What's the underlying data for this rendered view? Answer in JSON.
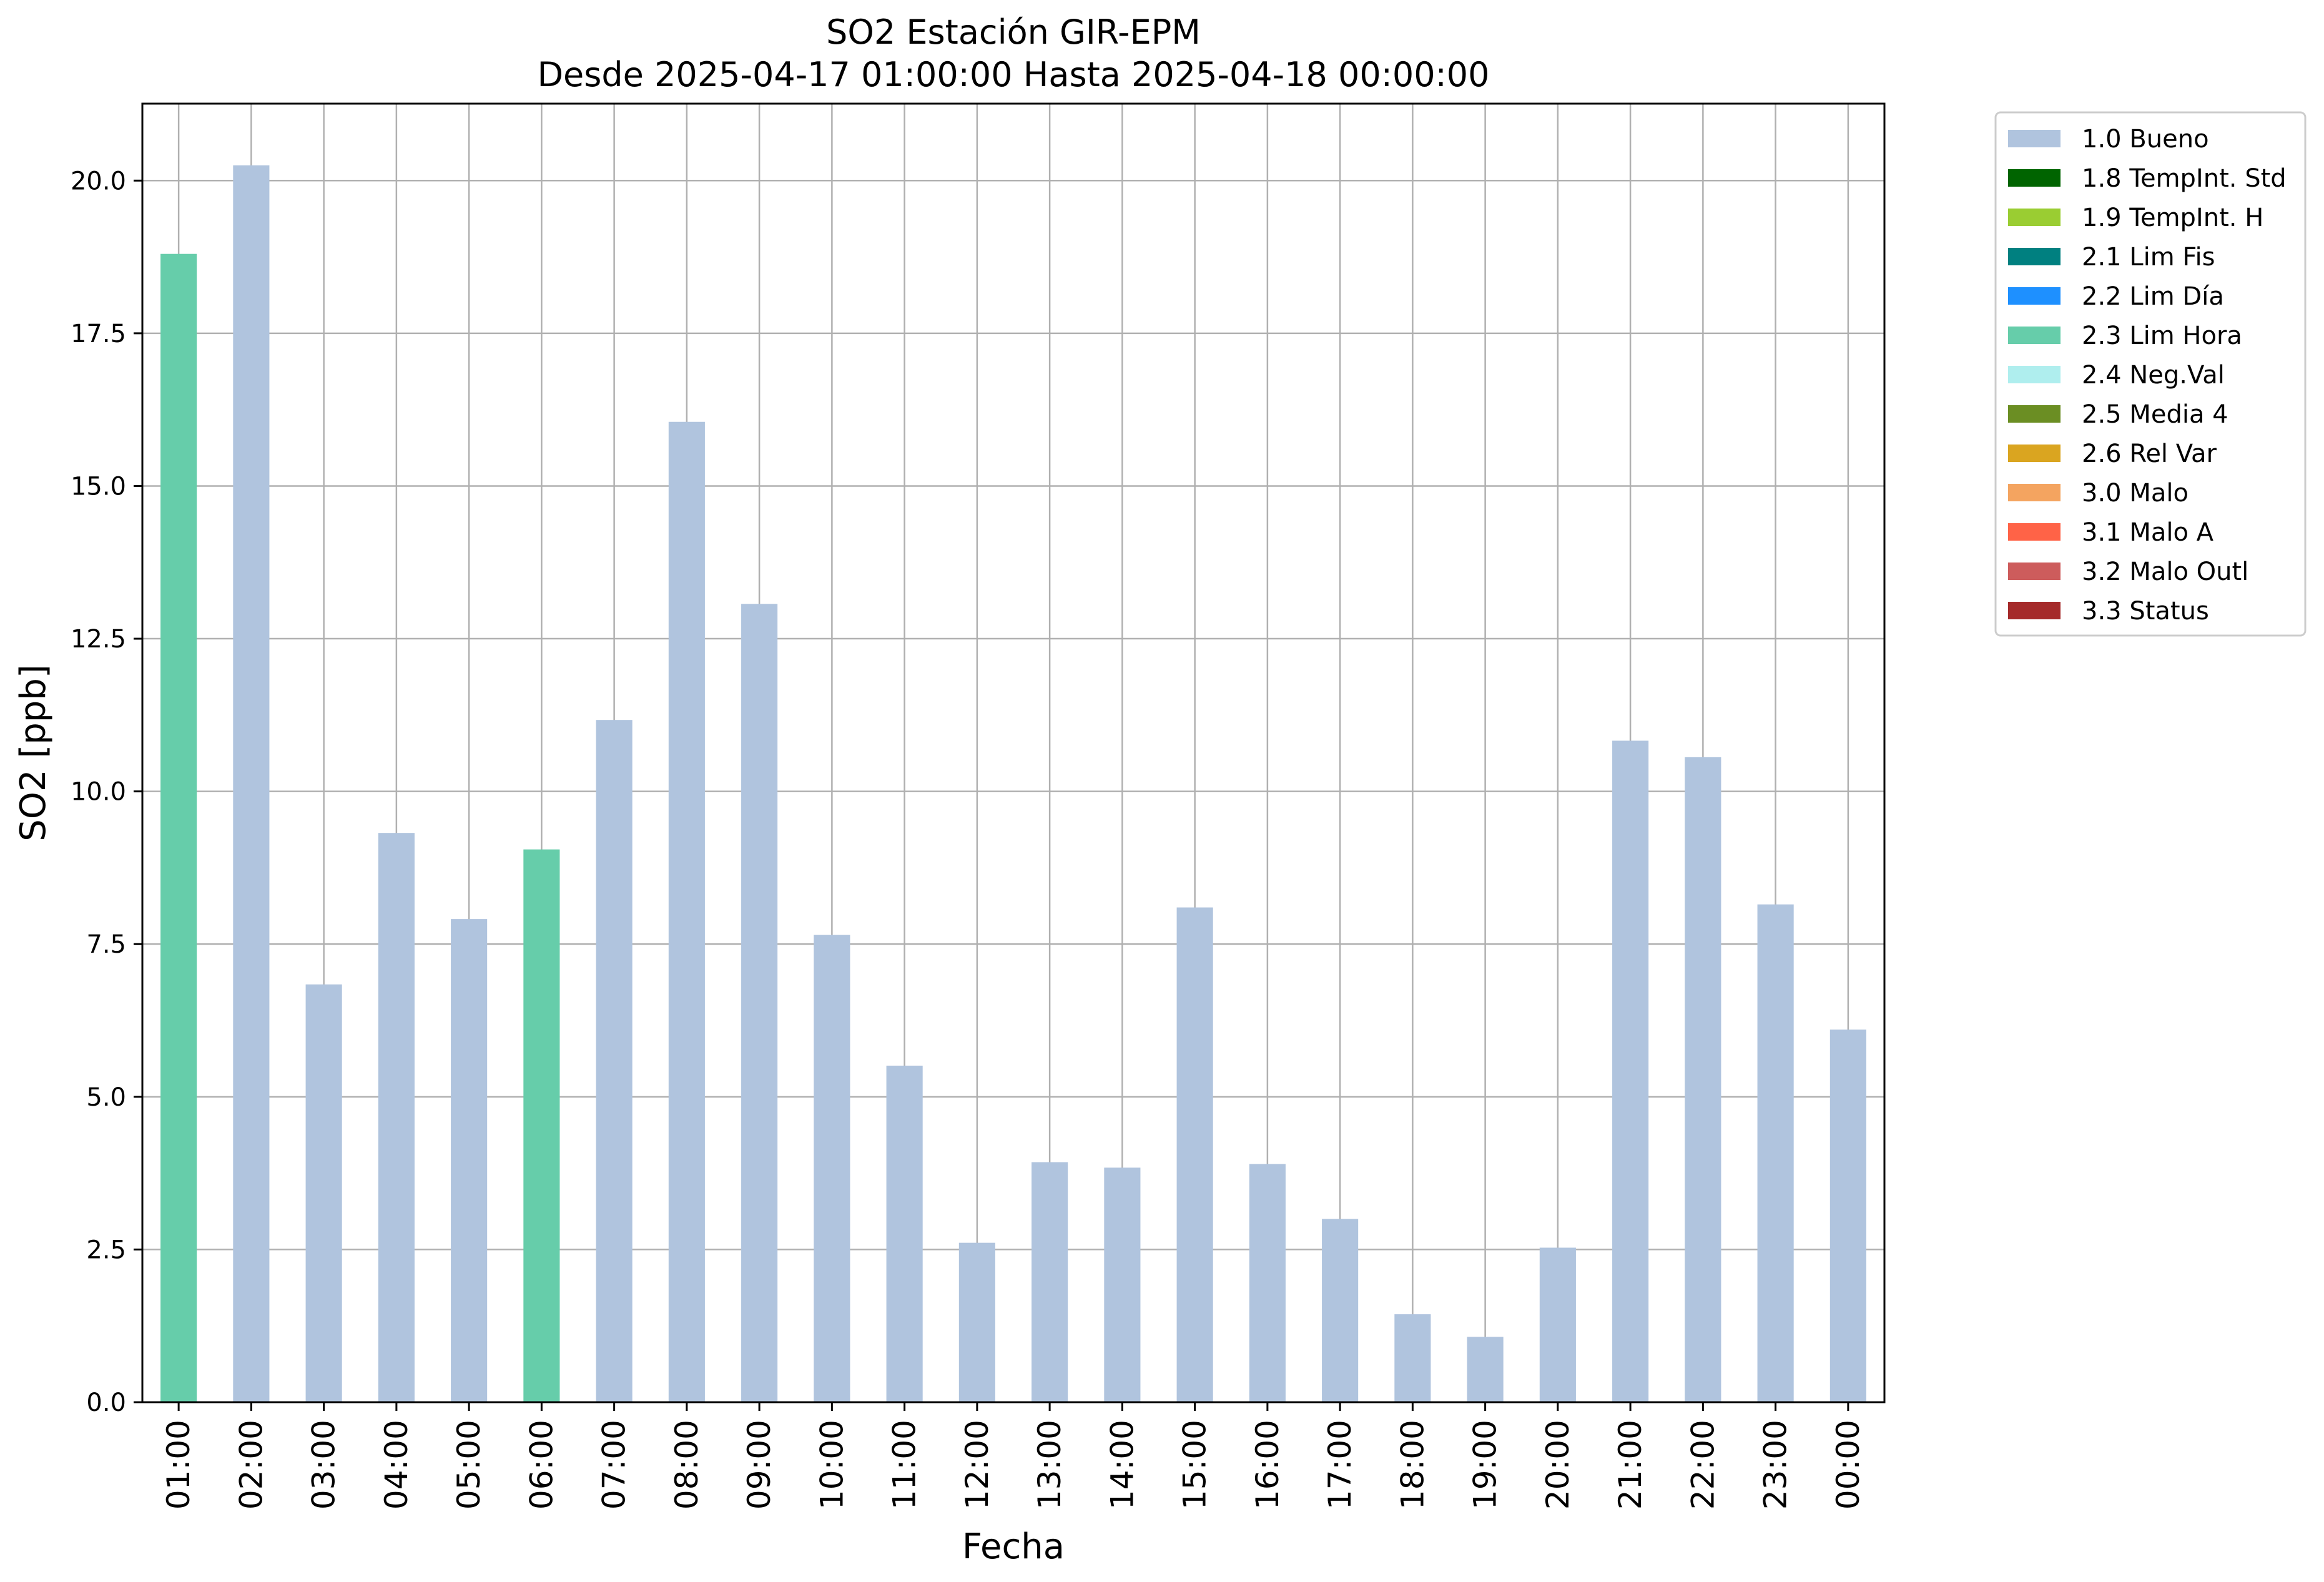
{
  "chart_data": {
    "type": "bar",
    "title": "SO2 Estación GIR-EPM",
    "subtitle": "Desde 2025-04-17 01:00:00 Hasta 2025-04-18 00:00:00",
    "xlabel": "Fecha",
    "ylabel": "SO2 [ppb]",
    "ylim": [
      0,
      21.26
    ],
    "yticks": [
      0.0,
      2.5,
      5.0,
      7.5,
      10.0,
      12.5,
      15.0,
      17.5,
      20.0
    ],
    "ytick_labels": [
      "0.0",
      "2.5",
      "5.0",
      "7.5",
      "10.0",
      "12.5",
      "15.0",
      "17.5",
      "20.0"
    ],
    "grid": true,
    "legend_position": "outside-top-right",
    "categories": [
      "01:00",
      "02:00",
      "03:00",
      "04:00",
      "05:00",
      "06:00",
      "07:00",
      "08:00",
      "09:00",
      "10:00",
      "11:00",
      "12:00",
      "13:00",
      "14:00",
      "15:00",
      "16:00",
      "17:00",
      "18:00",
      "19:00",
      "20:00",
      "21:00",
      "22:00",
      "23:00",
      "00:00"
    ],
    "values": [
      18.8,
      20.25,
      6.84,
      9.32,
      7.91,
      9.05,
      11.17,
      16.05,
      13.07,
      7.65,
      5.51,
      2.61,
      3.93,
      3.84,
      8.1,
      3.9,
      3.0,
      1.44,
      1.07,
      2.53,
      10.83,
      10.56,
      8.15,
      6.1
    ],
    "flags": [
      "2.3 Lim Hora",
      "1.0 Bueno",
      "1.0 Bueno",
      "1.0 Bueno",
      "1.0 Bueno",
      "2.3 Lim Hora",
      "1.0 Bueno",
      "1.0 Bueno",
      "1.0 Bueno",
      "1.0 Bueno",
      "1.0 Bueno",
      "1.0 Bueno",
      "1.0 Bueno",
      "1.0 Bueno",
      "1.0 Bueno",
      "1.0 Bueno",
      "1.0 Bueno",
      "1.0 Bueno",
      "1.0 Bueno",
      "1.0 Bueno",
      "1.0 Bueno",
      "1.0 Bueno",
      "1.0 Bueno",
      "1.0 Bueno"
    ],
    "legend": [
      {
        "label": "1.0 Bueno",
        "color": "#b0c4de"
      },
      {
        "label": "1.8 TempInt. Std",
        "color": "#006400"
      },
      {
        "label": "1.9 TempInt. H",
        "color": "#9acd32"
      },
      {
        "label": "2.1 Lim Fis",
        "color": "#008080"
      },
      {
        "label": "2.2 Lim Día",
        "color": "#1e90ff"
      },
      {
        "label": "2.3 Lim Hora",
        "color": "#66cdaa"
      },
      {
        "label": "2.4 Neg.Val",
        "color": "#afeeee"
      },
      {
        "label": "2.5 Media 4",
        "color": "#6b8e23"
      },
      {
        "label": "2.6 Rel Var",
        "color": "#daa520"
      },
      {
        "label": "3.0 Malo",
        "color": "#f4a460"
      },
      {
        "label": "3.1 Malo A",
        "color": "#ff6347"
      },
      {
        "label": "3.2 Malo Outl",
        "color": "#cd5c5c"
      },
      {
        "label": "3.3 Status",
        "color": "#a52a2a"
      }
    ]
  }
}
